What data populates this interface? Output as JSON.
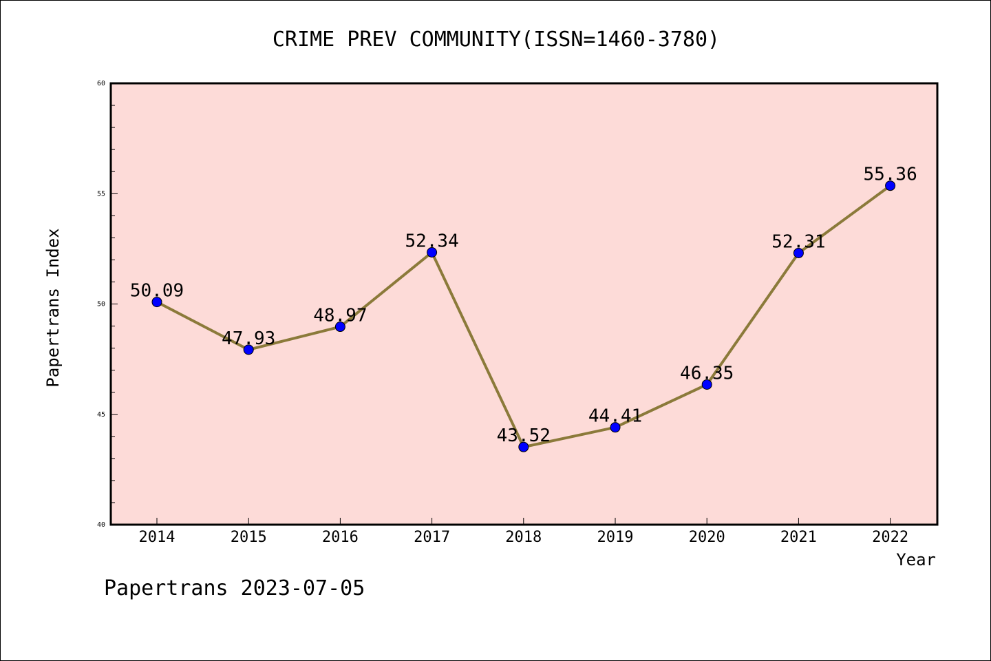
{
  "chart_data": {
    "type": "line",
    "title": "CRIME PREV COMMUNITY(ISSN=1460-3780)",
    "xlabel": "Year",
    "ylabel": "Papertrans Index",
    "categories": [
      "2014",
      "2015",
      "2016",
      "2017",
      "2018",
      "2019",
      "2020",
      "2021",
      "2022"
    ],
    "series": [
      {
        "values": [
          50.09,
          47.93,
          48.97,
          52.34,
          43.52,
          44.41,
          46.35,
          52.31,
          55.36
        ],
        "labels": [
          "50.09",
          "47.93",
          "48.97",
          "52.34",
          "43.52",
          "44.41",
          "46.35",
          "52.31",
          "55.36"
        ]
      }
    ],
    "ylim": [
      40,
      60
    ],
    "yticks": [
      40,
      45,
      50,
      55,
      60
    ],
    "ytick_labels": [
      "40",
      "45",
      "50",
      "55",
      "60"
    ],
    "grid": false,
    "colors": {
      "plot_background": "#fddbd8",
      "line": "#8b7a3a",
      "marker": "#0000ff"
    }
  },
  "footer": "Papertrans 2023-07-05"
}
